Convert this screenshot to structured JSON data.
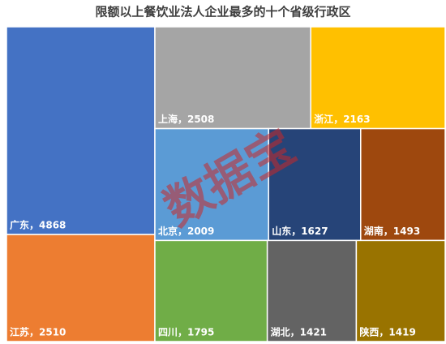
{
  "chart_data": {
    "type": "treemap",
    "title": "限额以上餐饮业法人企业最多的十个省级行政区",
    "values": [
      4868,
      2510,
      2508,
      2163,
      2009,
      1627,
      1493,
      1795,
      1421,
      1419
    ],
    "value_labels": [
      "广东，4868",
      "江苏，2510",
      "上海，2508",
      "浙江，2163",
      "北京，2009",
      "山东，1627",
      "湖南，1493",
      "四川，1795",
      "湖北，1421",
      "陕西，1419"
    ],
    "colors": [
      "#4472c4",
      "#ed7d31",
      "#a5a5a5",
      "#ffc000",
      "#5b9bd5",
      "#264478",
      "#9e480e",
      "#70ad47",
      "#636363",
      "#997300"
    ],
    "watermark": "数据宝"
  }
}
